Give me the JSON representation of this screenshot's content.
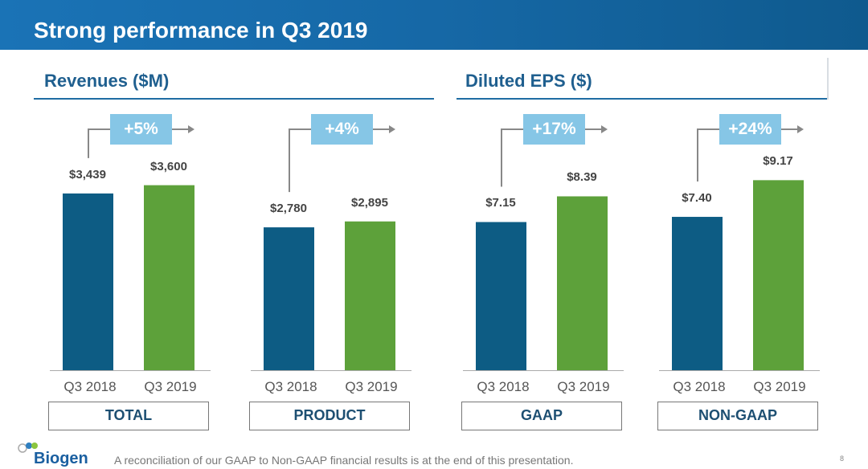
{
  "header": {
    "title": "Strong performance in Q3 2019"
  },
  "sections": [
    {
      "title": "Revenues ($M)"
    },
    {
      "title": "Diluted EPS ($)"
    }
  ],
  "chart_data": [
    {
      "type": "bar",
      "title": "Revenues ($M)",
      "category": "TOTAL",
      "categories": [
        "Q3 2018",
        "Q3 2019"
      ],
      "values": [
        3439,
        3600
      ],
      "value_labels": [
        "$3,439",
        "$3,600"
      ],
      "growth": "+5%",
      "ylim": [
        0,
        5000
      ],
      "colors": [
        "#0d5c84",
        "#5da13a"
      ]
    },
    {
      "type": "bar",
      "title": "Revenues ($M)",
      "category": "PRODUCT",
      "categories": [
        "Q3 2018",
        "Q3 2019"
      ],
      "values": [
        2780,
        2895
      ],
      "value_labels": [
        "$2,780",
        "$2,895"
      ],
      "growth": "+4%",
      "ylim": [
        0,
        5000
      ],
      "colors": [
        "#0d5c84",
        "#5da13a"
      ]
    },
    {
      "type": "bar",
      "title": "Diluted EPS ($)",
      "category": "GAAP",
      "categories": [
        "Q3 2018",
        "Q3 2019"
      ],
      "values": [
        7.15,
        8.39
      ],
      "value_labels": [
        "$7.15",
        "$8.39"
      ],
      "growth": "+17%",
      "ylim": [
        0,
        12.4
      ],
      "colors": [
        "#0d5c84",
        "#5da13a"
      ]
    },
    {
      "type": "bar",
      "title": "Diluted EPS ($)",
      "category": "NON-GAAP",
      "categories": [
        "Q3 2018",
        "Q3 2019"
      ],
      "values": [
        7.4,
        9.17
      ],
      "value_labels": [
        "$7.40",
        "$9.17"
      ],
      "growth": "+24%",
      "ylim": [
        0,
        12.4
      ],
      "colors": [
        "#0d5c84",
        "#5da13a"
      ]
    }
  ],
  "footer": {
    "logo": "Biogen",
    "note": "A reconciliation of our GAAP to Non-GAAP financial results is at the end of this presentation.",
    "page": "8"
  }
}
